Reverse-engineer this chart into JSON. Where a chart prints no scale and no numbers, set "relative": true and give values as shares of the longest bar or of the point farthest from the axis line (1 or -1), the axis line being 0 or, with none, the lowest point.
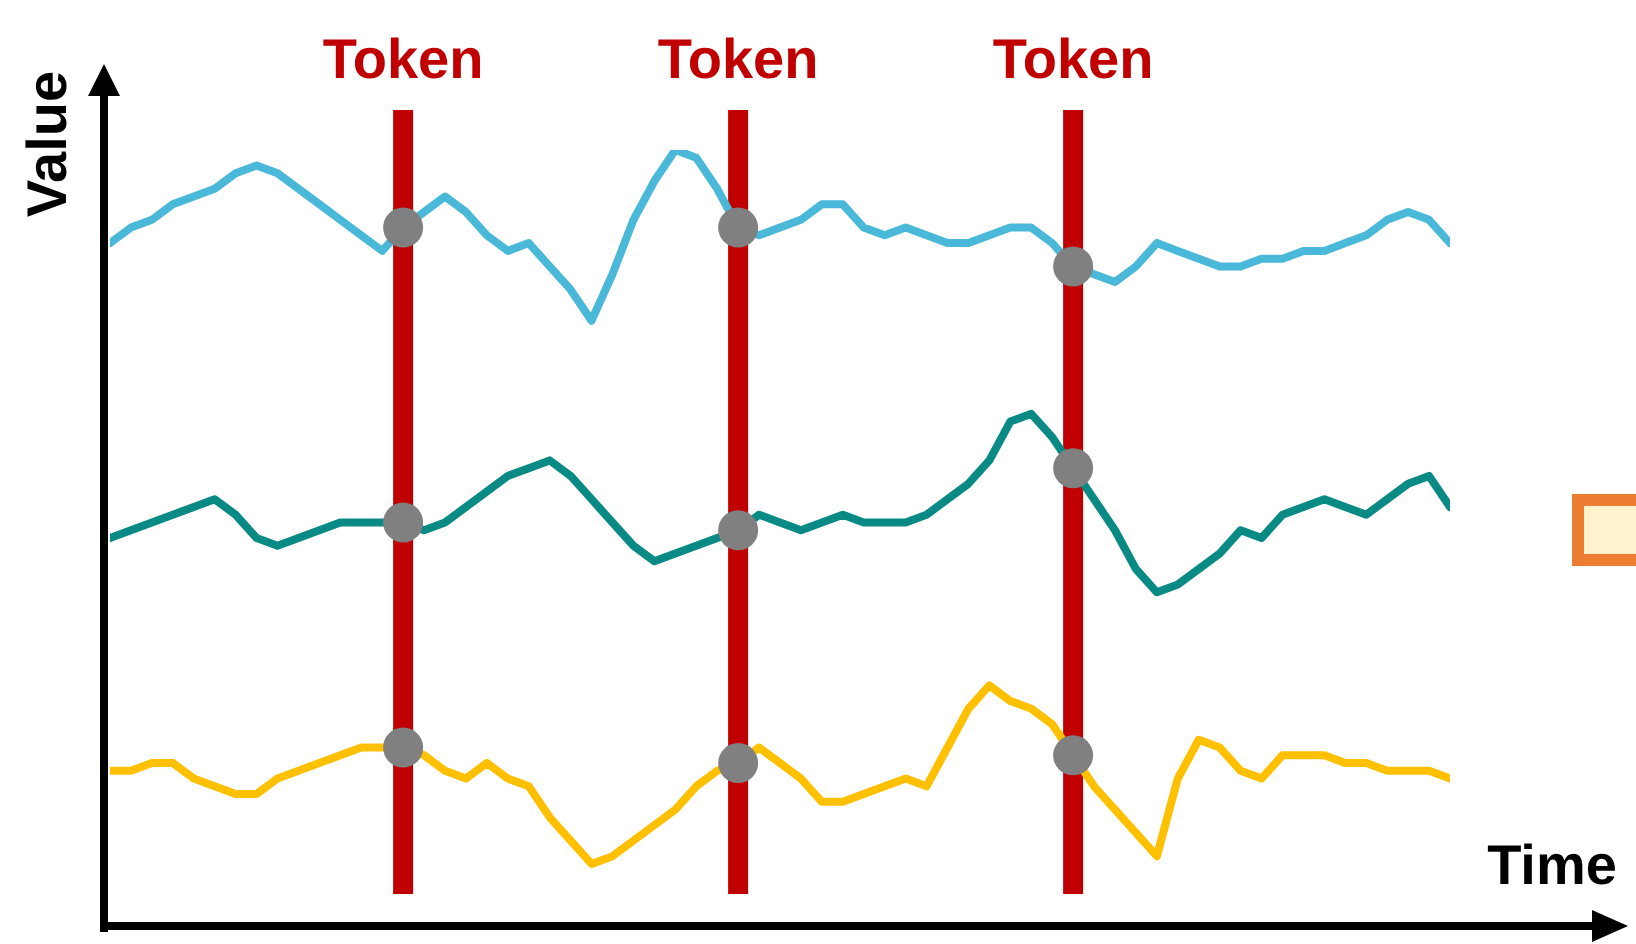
{
  "chart_data": {
    "type": "line",
    "xlabel": "Time",
    "ylabel": "Value",
    "relative": true,
    "marker": "none",
    "line_style": "solid",
    "categories": [
      null,
      null,
      null,
      null,
      null,
      null,
      null,
      null,
      null,
      null,
      null,
      null,
      null,
      null,
      null,
      null,
      null,
      null,
      null,
      null,
      null,
      null,
      null,
      null,
      null,
      null,
      null,
      null,
      null,
      null,
      null,
      null,
      null,
      null,
      null,
      null,
      null,
      null,
      null,
      null,
      null,
      null,
      null,
      null,
      null,
      null,
      null,
      null,
      null,
      null,
      null,
      null,
      null,
      null,
      null,
      null,
      null,
      null,
      null,
      null,
      null,
      null,
      null,
      null,
      null
    ],
    "series": [
      {
        "color": "#4ab8d8",
        "values": [
          0.88,
          0.9,
          0.91,
          0.93,
          0.94,
          0.95,
          0.97,
          0.98,
          0.97,
          0.95,
          0.93,
          0.91,
          0.89,
          0.87,
          0.9,
          0.92,
          0.94,
          0.92,
          0.89,
          0.87,
          0.88,
          0.85,
          0.82,
          0.78,
          0.84,
          0.91,
          0.96,
          1.0,
          0.99,
          0.95,
          0.9,
          0.89,
          0.9,
          0.91,
          0.93,
          0.93,
          0.9,
          0.89,
          0.9,
          0.89,
          0.88,
          0.88,
          0.89,
          0.9,
          0.9,
          0.88,
          0.85,
          0.84,
          0.83,
          0.85,
          0.88,
          0.87,
          0.86,
          0.85,
          0.85,
          0.86,
          0.86,
          0.87,
          0.87,
          0.88,
          0.89,
          0.91,
          0.92,
          0.91,
          0.88
        ]
      },
      {
        "color": "#0a8a85",
        "values": [
          0.5,
          0.51,
          0.52,
          0.53,
          0.54,
          0.55,
          0.53,
          0.5,
          0.49,
          0.5,
          0.51,
          0.52,
          0.52,
          0.52,
          0.52,
          0.51,
          0.52,
          0.54,
          0.56,
          0.58,
          0.59,
          0.6,
          0.58,
          0.55,
          0.52,
          0.49,
          0.47,
          0.48,
          0.49,
          0.5,
          0.51,
          0.53,
          0.52,
          0.51,
          0.52,
          0.53,
          0.52,
          0.52,
          0.52,
          0.53,
          0.55,
          0.57,
          0.6,
          0.65,
          0.66,
          0.63,
          0.59,
          0.55,
          0.51,
          0.46,
          0.43,
          0.44,
          0.46,
          0.48,
          0.51,
          0.5,
          0.53,
          0.54,
          0.55,
          0.54,
          0.53,
          0.55,
          0.57,
          0.58,
          0.54
        ]
      },
      {
        "color": "#ffc000",
        "values": [
          0.2,
          0.2,
          0.21,
          0.21,
          0.19,
          0.18,
          0.17,
          0.17,
          0.19,
          0.2,
          0.21,
          0.22,
          0.23,
          0.23,
          0.23,
          0.22,
          0.2,
          0.19,
          0.21,
          0.19,
          0.18,
          0.14,
          0.11,
          0.08,
          0.09,
          0.11,
          0.13,
          0.15,
          0.18,
          0.2,
          0.21,
          0.23,
          0.21,
          0.19,
          0.16,
          0.16,
          0.17,
          0.18,
          0.19,
          0.18,
          0.23,
          0.28,
          0.31,
          0.29,
          0.28,
          0.26,
          0.22,
          0.18,
          0.15,
          0.12,
          0.09,
          0.19,
          0.24,
          0.23,
          0.2,
          0.19,
          0.22,
          0.22,
          0.22,
          0.21,
          0.21,
          0.2,
          0.2,
          0.2,
          0.19
        ]
      }
    ],
    "annotations": [
      "Token",
      "Token",
      "Token"
    ]
  }
}
